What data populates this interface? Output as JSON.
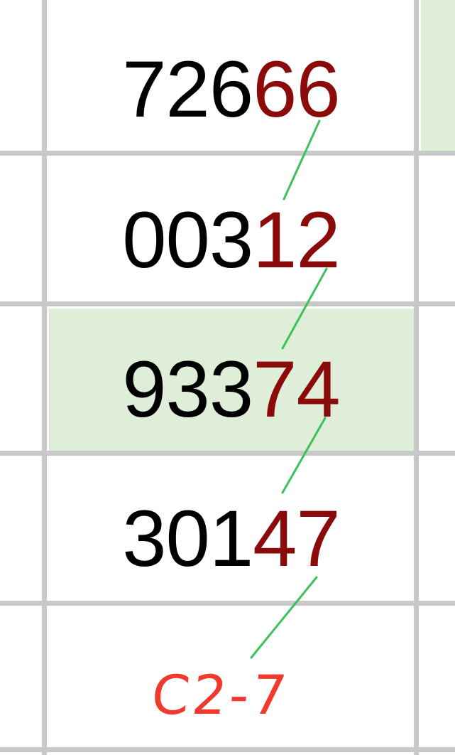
{
  "rows": [
    {
      "prefix": "726",
      "highlight": "66"
    },
    {
      "prefix": "003",
      "highlight": "12"
    },
    {
      "prefix": "933",
      "highlight": "74"
    },
    {
      "prefix": "301",
      "highlight": "47"
    }
  ],
  "annotation": "C2-7",
  "colors": {
    "grid": "#c8c8c8",
    "highlight_cell": "#deeed8",
    "highlight_digits": "#8b0a0a",
    "connector": "#3cc25a",
    "annotation": "#f03a2e"
  }
}
